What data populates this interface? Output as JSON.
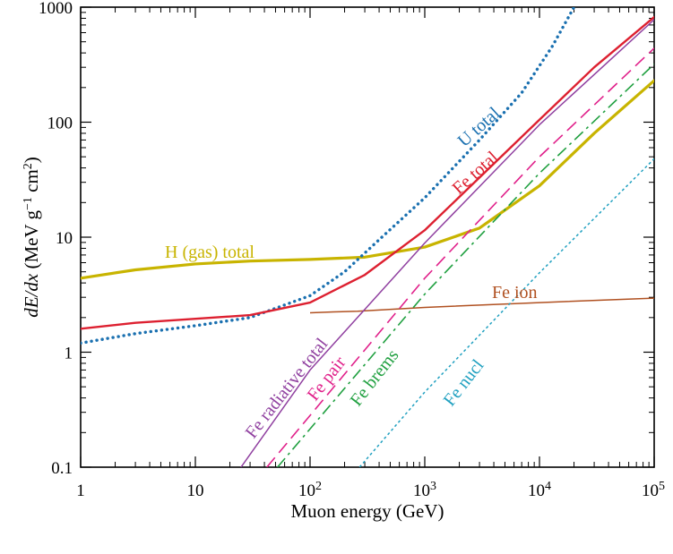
{
  "chart_data": {
    "type": "line",
    "x_scale": "log",
    "y_scale": "log",
    "xlim": [
      1,
      100000
    ],
    "ylim": [
      0.1,
      1000
    ],
    "xlabel": "Muon energy (GeV)",
    "ylabel": "dE/dx  (MeV g⁻¹ cm²)",
    "x_ticks": [
      {
        "value": 1,
        "label": "1"
      },
      {
        "value": 10,
        "label": "10"
      },
      {
        "value": 100,
        "label": "10",
        "sup": "2"
      },
      {
        "value": 1000,
        "label": "10",
        "sup": "3"
      },
      {
        "value": 10000,
        "label": "10",
        "sup": "4"
      },
      {
        "value": 100000,
        "label": "10",
        "sup": "5"
      }
    ],
    "y_ticks": [
      {
        "value": 0.1,
        "label": "0.1"
      },
      {
        "value": 1,
        "label": "1"
      },
      {
        "value": 10,
        "label": "10"
      },
      {
        "value": 100,
        "label": "100"
      },
      {
        "value": 1000,
        "label": "1000"
      }
    ],
    "series": [
      {
        "name": "H (gas) total",
        "color": "#c8b400",
        "style": "solid-thick",
        "points": [
          [
            1,
            4.4
          ],
          [
            3,
            5.2
          ],
          [
            10,
            5.85
          ],
          [
            30,
            6.2
          ],
          [
            100,
            6.4
          ],
          [
            300,
            6.7
          ],
          [
            1000,
            8.2
          ],
          [
            3000,
            12.0
          ],
          [
            10000,
            28
          ],
          [
            30000,
            80
          ],
          [
            100000,
            230
          ]
        ]
      },
      {
        "name": "U total",
        "color": "#1a70b0",
        "style": "dotted",
        "points": [
          [
            1,
            1.2
          ],
          [
            3,
            1.45
          ],
          [
            10,
            1.7
          ],
          [
            30,
            2.0
          ],
          [
            100,
            3.1
          ],
          [
            200,
            5.0
          ],
          [
            400,
            9.5
          ],
          [
            1000,
            22
          ],
          [
            3000,
            70
          ],
          [
            7000,
            180
          ],
          [
            13000,
            460
          ],
          [
            20000,
            1000
          ]
        ]
      },
      {
        "name": "Fe total",
        "color": "#dd2030",
        "style": "solid",
        "points": [
          [
            1,
            1.6
          ],
          [
            3,
            1.8
          ],
          [
            10,
            1.95
          ],
          [
            30,
            2.1
          ],
          [
            100,
            2.7
          ],
          [
            300,
            4.7
          ],
          [
            1000,
            11.5
          ],
          [
            3000,
            33
          ],
          [
            10000,
            105
          ],
          [
            30000,
            300
          ],
          [
            100000,
            820
          ]
        ]
      },
      {
        "name": "Fe ion",
        "color": "#b05020",
        "style": "solid-thin",
        "points": [
          [
            100,
            2.2
          ],
          [
            160,
            2.24
          ],
          [
            260,
            2.27
          ],
          [
            1000,
            2.45
          ],
          [
            10000,
            2.7
          ],
          [
            100000,
            2.95
          ]
        ]
      },
      {
        "name": "Fe radiative total",
        "color": "#9040a0",
        "style": "solid-thin",
        "points": [
          [
            25,
            0.1
          ],
          [
            100,
            0.7
          ],
          [
            1000,
            8.9
          ],
          [
            10000,
            95
          ],
          [
            100000,
            780
          ]
        ]
      },
      {
        "name": "Fe pair",
        "color": "#e0208a",
        "style": "dashed",
        "points": [
          [
            42,
            0.1
          ],
          [
            1000,
            4.4
          ],
          [
            10000,
            50
          ],
          [
            100000,
            440
          ]
        ]
      },
      {
        "name": "Fe brems",
        "color": "#20a040",
        "style": "dashdot",
        "points": [
          [
            52,
            0.1
          ],
          [
            1000,
            3.2
          ],
          [
            10000,
            36
          ],
          [
            100000,
            320
          ]
        ]
      },
      {
        "name": "Fe nucl",
        "color": "#20a0c0",
        "style": "dotted-thin",
        "points": [
          [
            270,
            0.1
          ],
          [
            1000,
            0.45
          ],
          [
            10000,
            4.9
          ],
          [
            100000,
            48
          ]
        ]
      }
    ],
    "labels": [
      {
        "text": "U total",
        "color": "#1a70b0"
      },
      {
        "text": "Fe total",
        "color": "#dd2030"
      },
      {
        "text": "H (gas) total",
        "color": "#c8b400"
      },
      {
        "text": "Fe ion",
        "color": "#b05020"
      },
      {
        "text": "Fe radiative total",
        "color": "#9040a0"
      },
      {
        "text": "Fe pair",
        "color": "#e0208a"
      },
      {
        "text": "Fe brems",
        "color": "#20a040"
      },
      {
        "text": "Fe nucl",
        "color": "#20a0c0"
      }
    ]
  }
}
